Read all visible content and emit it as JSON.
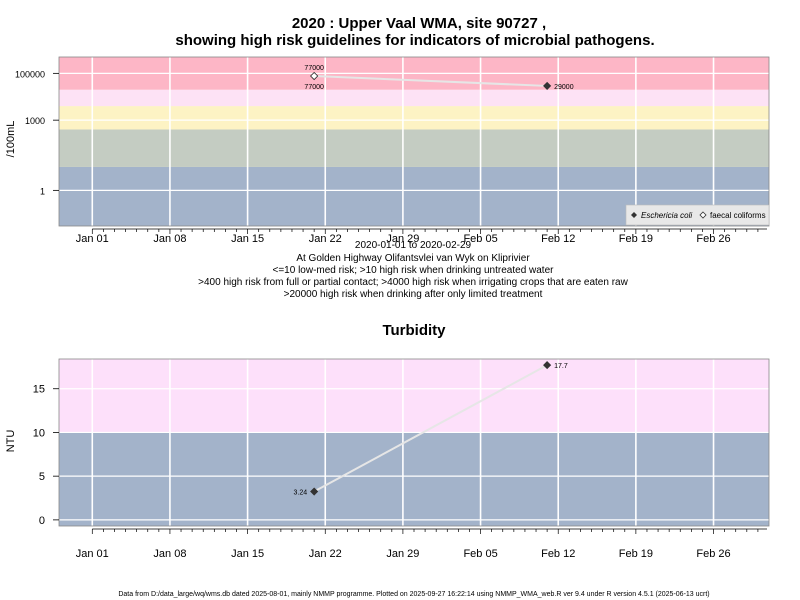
{
  "colors": {
    "band_blue": "#a3b3ca",
    "band_green": "#c4ccc2",
    "band_yellow": "#fdf3c4",
    "band_pink_light": "#fde2f5",
    "band_red": "#fdb6c6",
    "band_magenta": "#fde0fa",
    "grid": "#ffffff",
    "line": "#e6e6e6",
    "point": "#333333"
  },
  "top": {
    "title_line1": "2020 : Upper Vaal WMA, site 90727 ,",
    "title_line2": "showing high risk guidelines for indicators of microbial pathogens.",
    "ylabel": "/100mL",
    "subtitle_lines": [
      "2020-01-01 to 2020-02-29",
      "At Golden Highway Olifantsvlei van Wyk on Kliprivier",
      "<=10 low-med risk; >10 high risk when drinking untreated water",
      ">400 high risk from full or partial contact; >4000 high risk when irrigating crops that are eaten raw",
      ">20000 high risk when drinking after only limited treatment"
    ],
    "legend": [
      "Eschericia coli",
      "faecal coliforms"
    ]
  },
  "bottom": {
    "title": "Turbidity",
    "ylabel": "NTU"
  },
  "footer": "Data from D:/data_large/wq/wms.db dated 2025-08-01, mainly NMMP programme. Plotted on 2025-09-27 16:22:14 using NMMP_WMA_web.R ver 9.4 under R version 4.5.1 (2025-06-13 ucrt)",
  "chart_data": [
    {
      "type": "line",
      "title": "2020 : Upper Vaal WMA, site 90727 , showing high risk guidelines for indicators of microbial pathogens.",
      "ylabel": "/100mL",
      "yscale": "log",
      "x_tick_labels": [
        "Jan 01",
        "Jan 08",
        "Jan 15",
        "Jan 22",
        "Jan 29",
        "Feb 05",
        "Feb 12",
        "Feb 19",
        "Feb 26"
      ],
      "x_ticks": [
        "2020-01-01",
        "2020-01-08",
        "2020-01-15",
        "2020-01-22",
        "2020-01-29",
        "2020-02-05",
        "2020-02-12",
        "2020-02-19",
        "2020-02-26"
      ],
      "xlim": [
        "2019-12-29",
        "2020-03-02"
      ],
      "y_ticks": [
        1,
        1000,
        100000
      ],
      "y_tick_labels": [
        "1",
        "1000",
        "100000"
      ],
      "ylim": [
        0.03,
        500000
      ],
      "bands": [
        {
          "from": 0.03,
          "to": 10,
          "color": "#a3b3ca"
        },
        {
          "from": 10,
          "to": 400,
          "color": "#c4ccc2"
        },
        {
          "from": 400,
          "to": 4000,
          "color": "#fdf3c4"
        },
        {
          "from": 4000,
          "to": 20000,
          "color": "#fde2f5"
        },
        {
          "from": 20000,
          "to": 500000,
          "color": "#fdb6c6"
        }
      ],
      "series": [
        {
          "name": "Eschericia coli",
          "marker": "filled-diamond",
          "x": [
            "2020-01-21",
            "2020-02-11"
          ],
          "y": [
            77000,
            29000
          ],
          "labels": [
            "77000",
            "29000"
          ]
        },
        {
          "name": "faecal coliforms",
          "marker": "open-diamond",
          "x": [
            "2020-01-21"
          ],
          "y": [
            77000
          ],
          "labels": [
            "77000"
          ]
        }
      ],
      "legend_position": "bottom-right",
      "grid": true
    },
    {
      "type": "line",
      "title": "Turbidity",
      "ylabel": "NTU",
      "x_tick_labels": [
        "Jan 01",
        "Jan 08",
        "Jan 15",
        "Jan 22",
        "Jan 29",
        "Feb 05",
        "Feb 12",
        "Feb 19",
        "Feb 26"
      ],
      "x_ticks": [
        "2020-01-01",
        "2020-01-08",
        "2020-01-15",
        "2020-01-22",
        "2020-01-29",
        "2020-02-05",
        "2020-02-12",
        "2020-02-19",
        "2020-02-26"
      ],
      "xlim": [
        "2019-12-29",
        "2020-03-02"
      ],
      "y_ticks": [
        0,
        5,
        10,
        15
      ],
      "ylim": [
        -0.7,
        18.4
      ],
      "bands": [
        {
          "from": -0.7,
          "to": 10,
          "color": "#a3b3ca"
        },
        {
          "from": 10,
          "to": 18.4,
          "color": "#fde0fa"
        }
      ],
      "series": [
        {
          "name": "Turbidity",
          "marker": "filled-diamond",
          "x": [
            "2020-01-21",
            "2020-02-11"
          ],
          "y": [
            3.24,
            17.7
          ],
          "labels": [
            "3.24",
            "17.7"
          ]
        }
      ],
      "grid": true
    }
  ]
}
